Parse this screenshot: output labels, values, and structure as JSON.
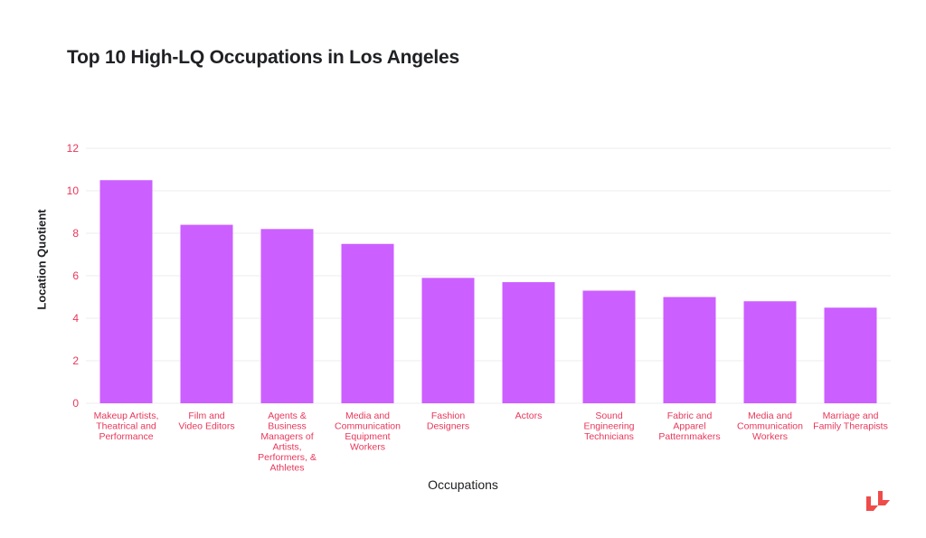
{
  "chart_data": {
    "type": "bar",
    "title": "Top 10 High-LQ Occupations in Los Angeles",
    "xlabel": "Occupations",
    "ylabel": "Location Quotient",
    "categories": [
      "Makeup Artists, Theatrical and Performance",
      "Film and Video Editors",
      "Agents & Business Managers of Artists, Performers, & Athletes",
      "Media and Communication Equipment Workers",
      "Fashion Designers",
      "Actors",
      "Sound Engineering Technicians",
      "Fabric and Apparel Patternmakers",
      "Media and Communication Workers",
      "Marriage and Family Therapists"
    ],
    "category_lines": [
      [
        "Makeup Artists,",
        "Theatrical and",
        "Performance"
      ],
      [
        "Film and",
        "Video Editors"
      ],
      [
        "Agents &",
        "Business",
        "Managers of",
        "Artists,",
        "Performers, &",
        "Athletes"
      ],
      [
        "Media and",
        "Communication",
        "Equipment",
        "Workers"
      ],
      [
        "Fashion",
        "Designers"
      ],
      [
        "Actors"
      ],
      [
        "Sound",
        "Engineering",
        "Technicians"
      ],
      [
        "Fabric and",
        "Apparel",
        "Patternmakers"
      ],
      [
        "Media and",
        "Communication",
        "Workers"
      ],
      [
        "Marriage and",
        "Family Therapists"
      ]
    ],
    "values": [
      10.5,
      8.4,
      8.2,
      7.5,
      5.9,
      5.7,
      5.3,
      5.0,
      4.8,
      4.5
    ],
    "ylim": [
      0,
      12
    ],
    "yticks": [
      0,
      2,
      4,
      6,
      8,
      10,
      12
    ],
    "grid": true,
    "colors": {
      "bar": "#cc5fff",
      "tick_label": "#e8375a",
      "grid": "#eeeeee",
      "text": "#202124"
    }
  },
  "logo": {
    "name": "brand-logo-icon",
    "color": "#ef4b4b"
  }
}
